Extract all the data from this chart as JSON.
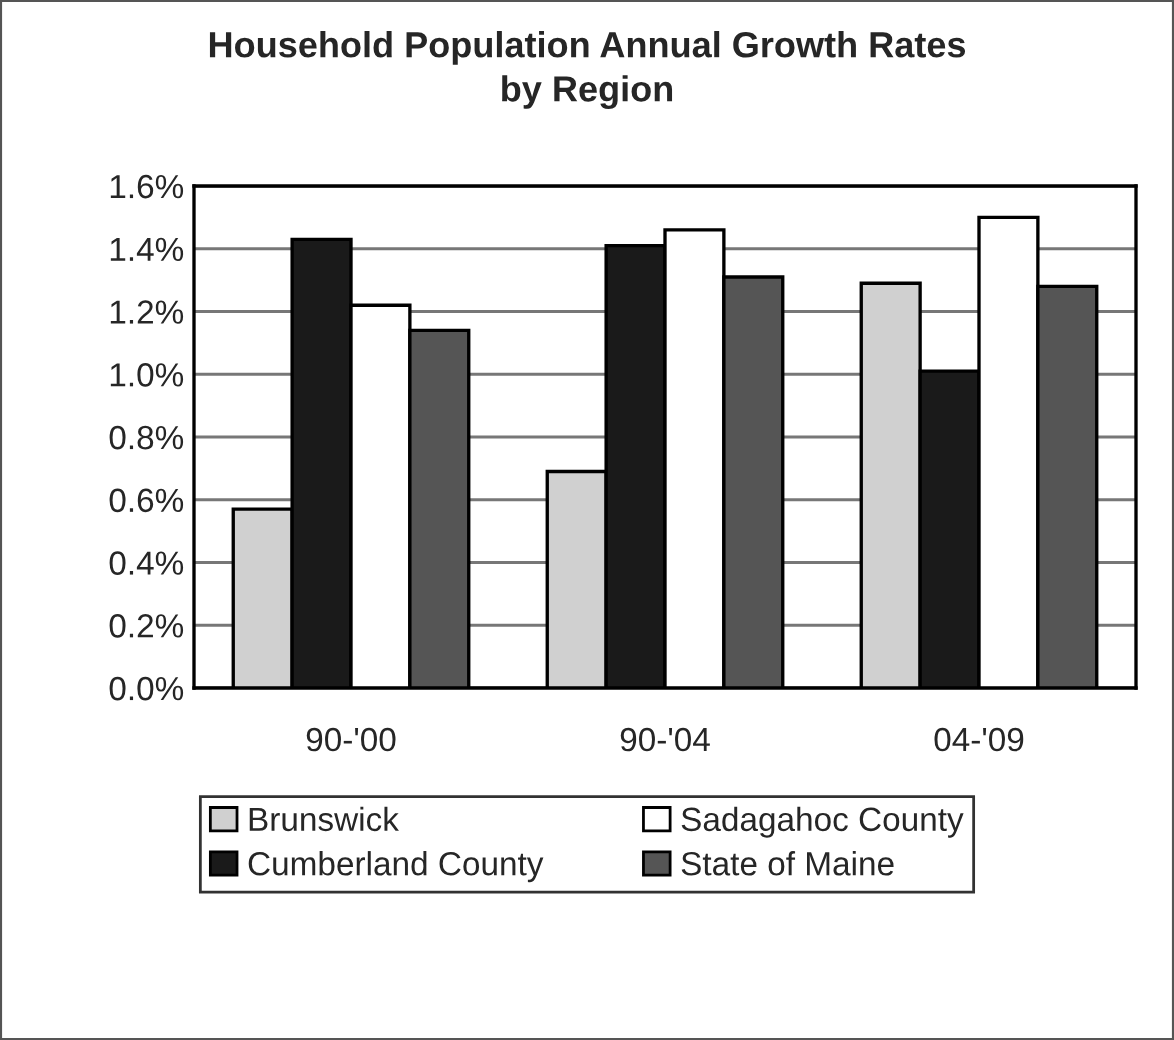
{
  "chart_data": {
    "type": "bar",
    "title": "Household Population Annual Growth Rates\nby Region",
    "categories": [
      "90-'00",
      "90-'04",
      "04-'09"
    ],
    "series": [
      {
        "name": "Brunswick",
        "color": "#d0d0d0",
        "values": [
          0.57,
          0.69,
          1.29
        ]
      },
      {
        "name": "Cumberland County",
        "color": "#1a1a1a",
        "values": [
          1.43,
          1.41,
          1.01
        ]
      },
      {
        "name": "Sadagahoc County",
        "color": "#ffffff",
        "values": [
          1.22,
          1.46,
          1.5
        ]
      },
      {
        "name": "State of Maine",
        "color": "#555555",
        "values": [
          1.14,
          1.31,
          1.28
        ]
      }
    ],
    "ylim": [
      0,
      1.6
    ],
    "yticks": [
      {
        "value": 0,
        "label": "0.0%"
      },
      {
        "value": 0.2,
        "label": "0.2%"
      },
      {
        "value": 0.4,
        "label": "0.4%"
      },
      {
        "value": 0.6,
        "label": "0.6%"
      },
      {
        "value": 0.8,
        "label": "0.8%"
      },
      {
        "value": 1.0,
        "label": "1.0%"
      },
      {
        "value": 1.2,
        "label": "1.2%"
      },
      {
        "value": 1.4,
        "label": "1.4%"
      },
      {
        "value": 1.6,
        "label": "1.6%"
      }
    ],
    "grid": "y",
    "legend": "bottom"
  }
}
